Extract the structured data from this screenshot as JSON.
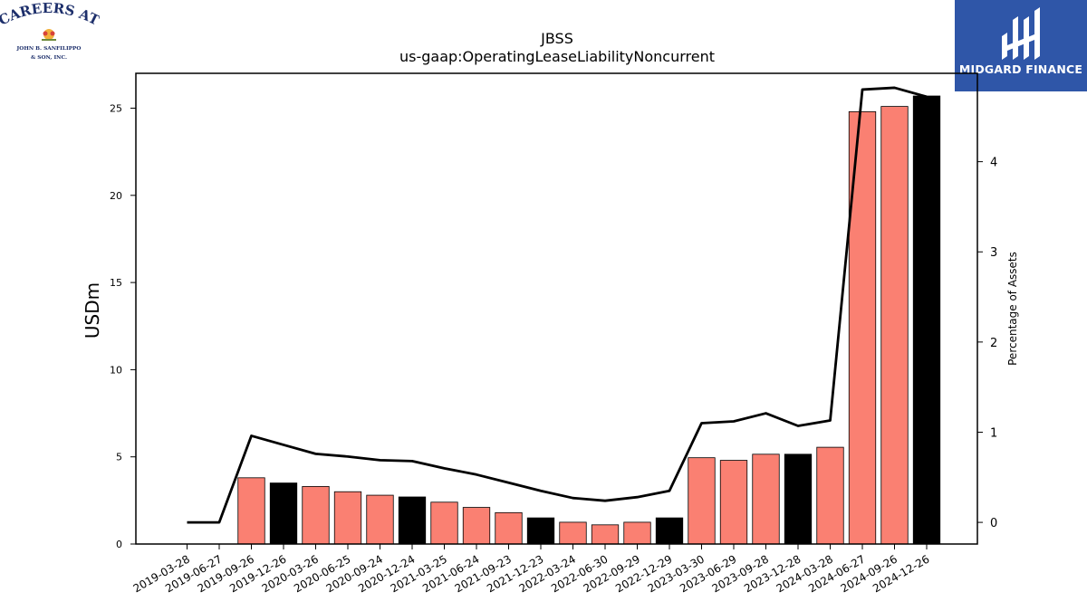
{
  "logos": {
    "left": {
      "line1": "CAREERS AT",
      "line2": "JOHN B. SANFILIPPO",
      "line3": "& SON, INC."
    },
    "right": {
      "name": "MIDGARD FINANCE",
      "color": "#2f56a8"
    }
  },
  "chart_data": {
    "type": "bar",
    "title": "JBSS",
    "subtitle": "us-gaap:OperatingLeaseLiabilityNoncurrent",
    "ylabel": "USDm",
    "y2label": "Percentage of Assets",
    "ylim": [
      0,
      27
    ],
    "y2lim": [
      -0.24,
      4.98
    ],
    "yticks": [
      "0",
      "5",
      "10",
      "15",
      "20",
      "25"
    ],
    "y2ticks": [
      "0",
      "1",
      "2",
      "3",
      "4"
    ],
    "categories": [
      "2019-03-28",
      "2019-06-27",
      "2019-09-26",
      "2019-12-26",
      "2020-03-26",
      "2020-06-25",
      "2020-09-24",
      "2020-12-24",
      "2021-03-25",
      "2021-06-24",
      "2021-09-23",
      "2021-12-23",
      "2022-03-24",
      "2022-06-30",
      "2022-09-29",
      "2022-12-29",
      "2023-03-30",
      "2023-06-29",
      "2023-09-28",
      "2023-12-28",
      "2024-03-28",
      "2024-06-27",
      "2024-09-26",
      "2024-12-26"
    ],
    "series": [
      {
        "kind": "bar",
        "values": [
          0,
          0,
          3.8,
          3.5,
          3.3,
          3.0,
          2.8,
          2.7,
          2.4,
          2.1,
          1.8,
          1.5,
          1.25,
          1.1,
          1.25,
          1.5,
          4.95,
          4.8,
          5.15,
          5.15,
          5.55,
          24.8,
          25.1,
          25.7
        ],
        "colors": [
          "#fa8072",
          "#fa8072",
          "#fa8072",
          "#000000",
          "#fa8072",
          "#fa8072",
          "#fa8072",
          "#000000",
          "#fa8072",
          "#fa8072",
          "#fa8072",
          "#000000",
          "#fa8072",
          "#fa8072",
          "#fa8072",
          "#000000",
          "#fa8072",
          "#fa8072",
          "#fa8072",
          "#000000",
          "#fa8072",
          "#fa8072",
          "#fa8072",
          "#000000"
        ]
      },
      {
        "kind": "line",
        "axis": "right",
        "color": "#000000",
        "values": [
          0.0,
          0.0,
          0.96,
          0.86,
          0.76,
          0.73,
          0.69,
          0.68,
          0.6,
          0.53,
          0.44,
          0.35,
          0.27,
          0.24,
          0.28,
          0.35,
          1.1,
          1.12,
          1.21,
          1.07,
          1.13,
          4.8,
          4.82,
          4.72
        ]
      }
    ],
    "grid": false
  }
}
